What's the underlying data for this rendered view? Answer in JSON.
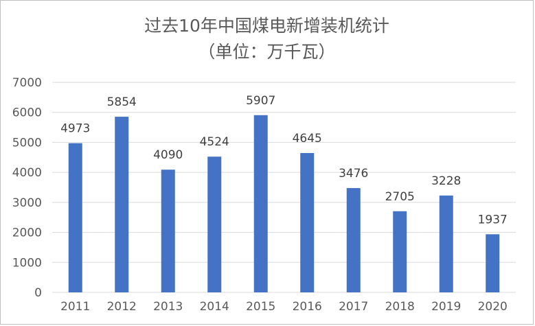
{
  "chart_data": {
    "type": "bar",
    "title": "过去10年中国煤电新增装机统计",
    "subtitle": "（单位：万千瓦）",
    "categories": [
      "2011",
      "2012",
      "2013",
      "2014",
      "2015",
      "2016",
      "2017",
      "2018",
      "2019",
      "2020"
    ],
    "values": [
      4973,
      5854,
      4090,
      4524,
      5907,
      4645,
      3476,
      2705,
      3228,
      1937
    ],
    "ylim": [
      0,
      7000
    ],
    "yticks": [
      0,
      1000,
      2000,
      3000,
      4000,
      5000,
      6000,
      7000
    ],
    "grid": true,
    "legend": "none",
    "bar_color": "#4472c4",
    "grid_color": "#d9d9d9",
    "text_color": "#595959"
  }
}
